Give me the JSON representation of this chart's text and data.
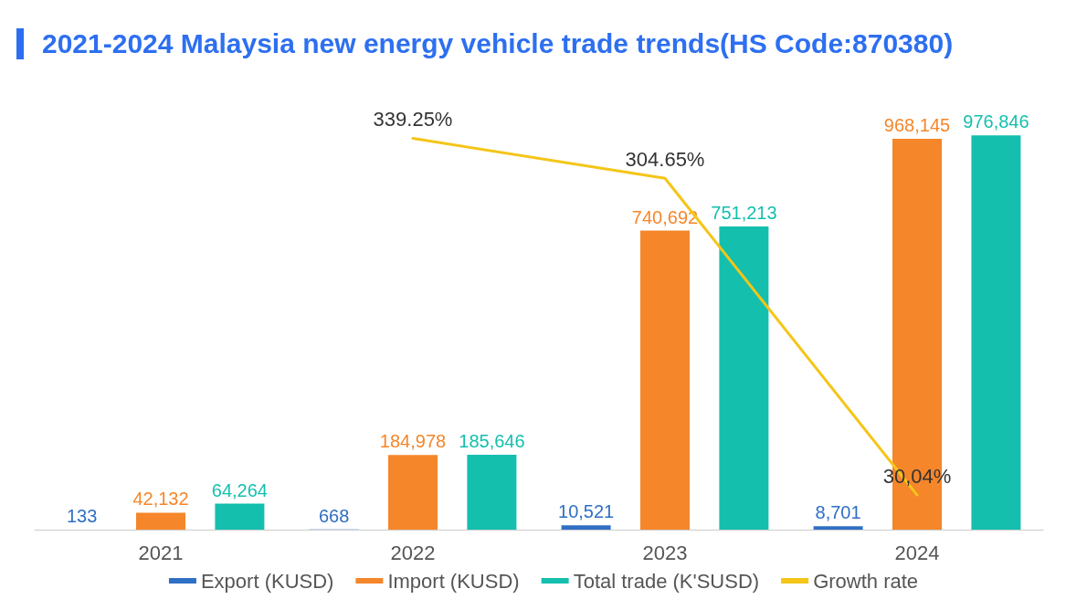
{
  "chart_data": {
    "type": "bar",
    "title": "2021-2024 Malaysia new energy vehicle trade trends(HS Code:870380)",
    "categories": [
      "2021",
      "2022",
      "2023",
      "2024"
    ],
    "series": [
      {
        "name": "Export (KUSD)",
        "color": "#2f6fc4",
        "values": [
          133,
          668,
          10521,
          8701
        ],
        "value_labels": [
          "133",
          "668",
          "10,521",
          "8,701"
        ]
      },
      {
        "name": "Import (KUSD)",
        "color": "#f5862a",
        "values": [
          42132,
          184978,
          740692,
          968145
        ],
        "value_labels": [
          "42,132",
          "184,978",
          "740,692",
          "968,145"
        ]
      },
      {
        "name": "Total trade (K'SUSD)",
        "color": "#14bfae",
        "values": [
          64264,
          185646,
          751213,
          976846
        ],
        "value_labels": [
          "64,264",
          "185,646",
          "751,213",
          "976,846"
        ]
      },
      {
        "name": "Growth rate",
        "type": "line",
        "axis": "y2",
        "color": "#f5c518",
        "values": [
          null,
          339.25,
          304.65,
          30.04
        ],
        "value_labels": [
          null,
          "339.25%",
          "304.65%",
          "30,04%"
        ]
      }
    ],
    "legend": "bottom",
    "marker": "none",
    "line_style": "solid"
  }
}
